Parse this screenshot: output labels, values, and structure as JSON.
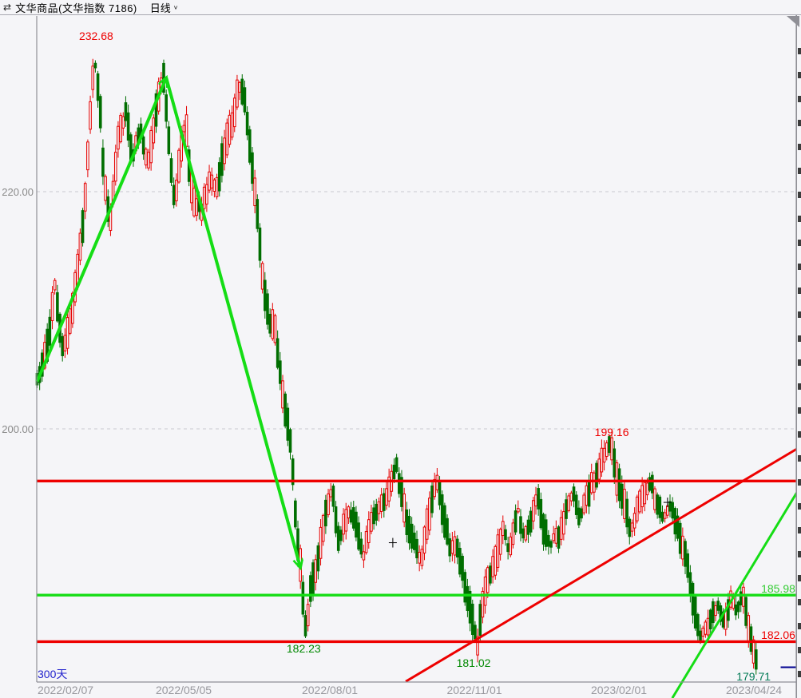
{
  "header": {
    "icon": "⇄",
    "title": "文华商品(文华指数 7186)",
    "period": "日线",
    "period_dropdown_icon": "∨"
  },
  "axis": {
    "y_ticks": [
      "220.00",
      "200.00"
    ],
    "x_ticks": [
      "2022/02/07",
      "2022/05/05",
      "2022/08/01",
      "2022/11/01",
      "2023/02/01",
      "2023/04/24"
    ]
  },
  "footer": {
    "window_label": "300天"
  },
  "colors": {
    "up_candle": "#e60000",
    "down_candle": "#006e00",
    "bright_green": "#15dd15",
    "bright_red": "#ee0000",
    "navy": "#000090",
    "background": "#f5f5f8"
  },
  "chart_data": {
    "type": "candlestick",
    "title": "文华商品(文华指数 7186)",
    "period": "日线",
    "visible_days": 300,
    "ylim": [
      178.7,
      234.8
    ],
    "y_gridlines": [
      220.0,
      200.0
    ],
    "grid_style": "dashed",
    "price_path": [
      [
        0,
        204
      ],
      [
        4.4,
        207.2
      ],
      [
        6.9,
        212.3
      ],
      [
        10.1,
        206.5
      ],
      [
        13.2,
        209.2
      ],
      [
        16.4,
        213.9
      ],
      [
        18.9,
        219.3
      ],
      [
        20.8,
        226.1
      ],
      [
        22.7,
        231.2
      ],
      [
        24.6,
        228.1
      ],
      [
        26.5,
        220.7
      ],
      [
        29,
        217.5
      ],
      [
        32.1,
        224.7
      ],
      [
        35.3,
        226.7
      ],
      [
        37.8,
        222.7
      ],
      [
        40.7,
        225.7
      ],
      [
        43.5,
        222
      ],
      [
        46.6,
        226.1
      ],
      [
        49.8,
        230.4
      ],
      [
        52.3,
        223.4
      ],
      [
        54.2,
        219
      ],
      [
        58.6,
        226.4
      ],
      [
        60.5,
        220.7
      ],
      [
        62.1,
        219.3
      ],
      [
        64.9,
        218.3
      ],
      [
        68.1,
        221
      ],
      [
        71.2,
        220.3
      ],
      [
        74.1,
        223.7
      ],
      [
        76.9,
        225.7
      ],
      [
        79.4,
        228.6
      ],
      [
        81.6,
        228.4
      ],
      [
        83.8,
        224.4
      ],
      [
        85.7,
        220.7
      ],
      [
        87.6,
        216.6
      ],
      [
        89.5,
        211.6
      ],
      [
        91.7,
        209.2
      ],
      [
        93.9,
        208.7
      ],
      [
        96.1,
        204.5
      ],
      [
        98.3,
        201.1
      ],
      [
        100.2,
        198.8
      ],
      [
        102.1,
        192.4
      ],
      [
        104.3,
        187.7
      ],
      [
        106.2,
        183
      ],
      [
        108.4,
        187
      ],
      [
        110.9,
        189
      ],
      [
        114.1,
        193.1
      ],
      [
        116.3,
        195.1
      ],
      [
        119.4,
        190.4
      ],
      [
        122.6,
        193.1
      ],
      [
        125.7,
        192.4
      ],
      [
        128.9,
        189
      ],
      [
        132,
        192.4
      ],
      [
        135.2,
        193.1
      ],
      [
        138.3,
        194.4
      ],
      [
        142.1,
        196.8
      ],
      [
        145.6,
        192.4
      ],
      [
        148.7,
        190.4
      ],
      [
        151.9,
        189
      ],
      [
        155,
        193.1
      ],
      [
        157.9,
        195.6
      ],
      [
        160.7,
        192.4
      ],
      [
        163.5,
        189.7
      ],
      [
        165.8,
        190.4
      ],
      [
        168.3,
        187.7
      ],
      [
        171.4,
        184.3
      ],
      [
        174,
        181.9
      ],
      [
        176.5,
        186.3
      ],
      [
        179,
        187.7
      ],
      [
        181.5,
        189
      ],
      [
        184,
        191.7
      ],
      [
        186.6,
        189.7
      ],
      [
        189.7,
        193.1
      ],
      [
        192.2,
        191.1
      ],
      [
        195.1,
        192.4
      ],
      [
        197.6,
        194.7
      ],
      [
        199.8,
        191.7
      ],
      [
        203,
        190.4
      ],
      [
        206.1,
        191.1
      ],
      [
        209.2,
        193.1
      ],
      [
        211.8,
        194.4
      ],
      [
        214.3,
        192.4
      ],
      [
        217.1,
        194.4
      ],
      [
        220.3,
        195.8
      ],
      [
        223.4,
        197.8
      ],
      [
        226.6,
        198.8
      ],
      [
        229.1,
        195.8
      ],
      [
        231.9,
        193.7
      ],
      [
        234.5,
        191.4
      ],
      [
        237,
        193.1
      ],
      [
        239.5,
        194.7
      ],
      [
        242.3,
        195.6
      ],
      [
        244.9,
        193.7
      ],
      [
        247.7,
        192.4
      ],
      [
        250.2,
        193.4
      ],
      [
        252.8,
        191.7
      ],
      [
        255.3,
        189.7
      ],
      [
        257.5,
        188
      ],
      [
        259.7,
        184.6
      ],
      [
        261.9,
        182.6
      ],
      [
        264.1,
        183
      ],
      [
        266.6,
        184.3
      ],
      [
        269.1,
        185
      ],
      [
        271.6,
        183.3
      ],
      [
        274.2,
        185.7
      ],
      [
        276.7,
        184.6
      ],
      [
        278.9,
        186
      ],
      [
        281.4,
        183
      ],
      [
        283.3,
        180.6
      ]
    ],
    "horizontal_lines": [
      {
        "price": 195.6,
        "color": "#ee0000",
        "label": ""
      },
      {
        "price": 185.98,
        "color": "#15dd15",
        "label": "185.98"
      },
      {
        "price": 182.06,
        "color": "#ee0000",
        "label": "182.06"
      }
    ],
    "trend_lines": [
      {
        "name": "green-up-arrow",
        "color": "#15dd15",
        "width": 4,
        "arrow": true,
        "points": [
          [
            0,
            204.0
          ],
          [
            51,
            229.6
          ]
        ]
      },
      {
        "name": "green-down-arrow",
        "color": "#15dd15",
        "width": 4,
        "arrow": true,
        "points": [
          [
            51,
            229.6
          ],
          [
            104,
            188.3
          ]
        ]
      },
      {
        "name": "red-rising-trendline",
        "color": "#ee0000",
        "width": 3,
        "arrow": false,
        "points": [
          [
            145.6,
            178.7
          ],
          [
            300,
            198.3
          ]
        ]
      },
      {
        "name": "green-rising-trendline",
        "color": "#15dd15",
        "width": 3,
        "arrow": false,
        "points": [
          [
            250.9,
            177.3
          ],
          [
            300,
            194.6
          ]
        ]
      }
    ],
    "annotations": [
      {
        "text": "232.68",
        "color": "#ee0000",
        "day": 23.3,
        "price": 233.1,
        "align": "center"
      },
      {
        "text": "199.16",
        "color": "#ee0000",
        "day": 227,
        "price": 199.7,
        "align": "center"
      },
      {
        "text": "185.98",
        "color": "#33cc33",
        "day": 299.5,
        "price": 186.5,
        "align": "right"
      },
      {
        "text": "182.06",
        "color": "#ee0000",
        "day": 299.5,
        "price": 182.6,
        "align": "right"
      },
      {
        "text": "182.23",
        "color": "#008800",
        "day": 105.3,
        "price": 181.5,
        "align": "center"
      },
      {
        "text": "181.02",
        "color": "#008800",
        "day": 172.4,
        "price": 180.3,
        "align": "center"
      },
      {
        "text": "179.71",
        "color": "#007a55",
        "day": 283,
        "price": 179.1,
        "align": "center"
      }
    ],
    "markers": {
      "crosses": [
        [
          140.5,
          190.4
        ],
        [
          249,
          193.8
        ]
      ],
      "navy_segment": {
        "from_day": 293.7,
        "to_day": 300,
        "price": 179.9,
        "color": "#000090"
      }
    }
  }
}
